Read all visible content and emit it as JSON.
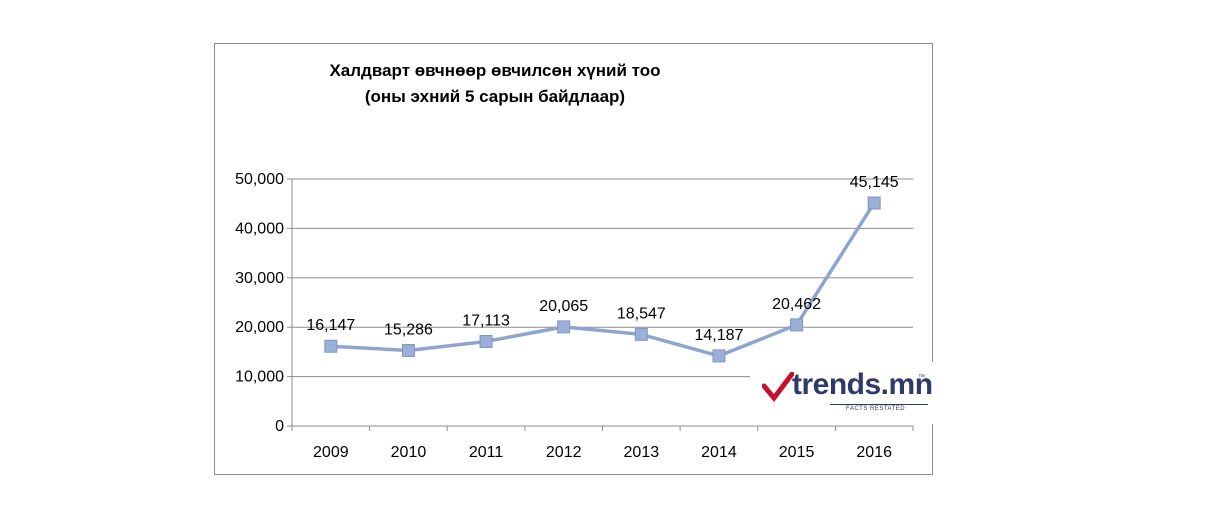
{
  "chart_data": {
    "type": "line",
    "title_line1": "Халдварт өвчнөөр өвчилсөн хүний тоо",
    "title_line2": "(оны эхний 5 сарын байдлаар)",
    "categories": [
      "2009",
      "2010",
      "2011",
      "2012",
      "2013",
      "2014",
      "2015",
      "2016"
    ],
    "values": [
      16147,
      15286,
      17113,
      20065,
      18547,
      14187,
      20462,
      45145
    ],
    "data_labels": [
      "16,147",
      "15,286",
      "17,113",
      "20,065",
      "18,547",
      "14,187",
      "20,462",
      "45,145"
    ],
    "y_ticks": [
      "0",
      "10,000",
      "20,000",
      "30,000",
      "40,000",
      "50,000"
    ],
    "ylim": [
      0,
      50000
    ],
    "grid": true,
    "legend": "none",
    "line_color": "#8ea5cf",
    "marker_color": "#9bb0d8",
    "marker_stroke": "#7f96c4",
    "grid_color": "#8c8c8c"
  },
  "watermark": {
    "text": "trends.mn",
    "tm": "™",
    "tagline": "FACTS RESTATED",
    "check_color": "#c8102e",
    "text_color": "#2f3a6b"
  }
}
